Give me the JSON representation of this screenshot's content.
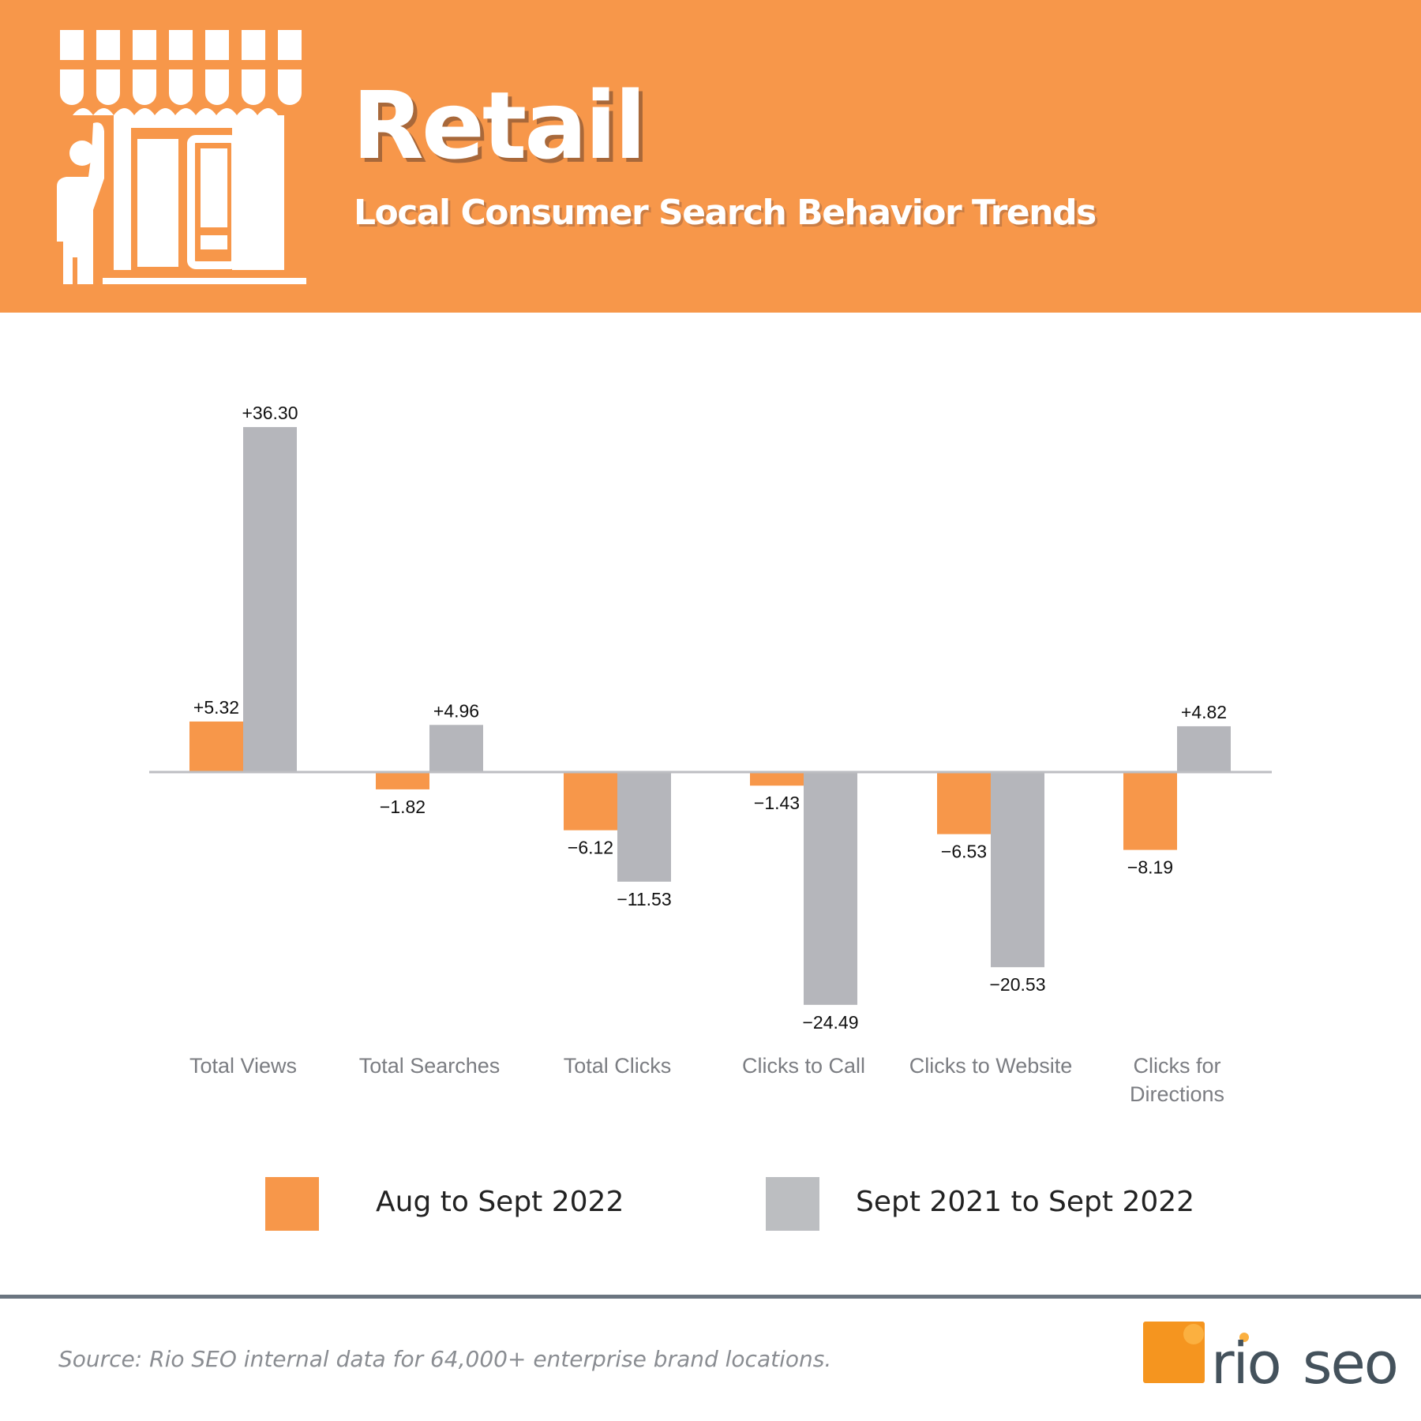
{
  "header": {
    "title": "Retail",
    "subtitle": "Local Consumer Search Behavior Trends",
    "icon": "storefront-icon",
    "background_color": "#f7974a"
  },
  "chart_data": {
    "type": "bar",
    "categories": [
      "Total Views",
      "Total Searches",
      "Total Clicks",
      "Clicks to Call",
      "Clicks to Website",
      "Clicks for Directions"
    ],
    "series": [
      {
        "name": "Aug to Sept 2022",
        "color": "#f7974a",
        "values": [
          5.32,
          -1.82,
          -6.12,
          -1.43,
          -6.53,
          -8.19
        ],
        "labels": [
          "+5.32",
          "−1.82",
          "−6.12",
          "−1.43",
          "−6.53",
          "−8.19"
        ]
      },
      {
        "name": "Sept 2021 to Sept 2022",
        "color": "#b5b6bb",
        "values": [
          36.3,
          4.96,
          -11.53,
          -24.49,
          -20.53,
          4.82
        ],
        "labels": [
          "+36.30",
          "+4.96",
          "−11.53",
          "−24.49",
          "−20.53",
          "+4.82"
        ]
      }
    ],
    "ylim": [
      -24.49,
      36.3
    ],
    "grid": false,
    "legend_position": "bottom"
  },
  "legend": {
    "items": [
      {
        "label": "Aug to Sept 2022",
        "color": "#f7974a"
      },
      {
        "label": "Sept 2021 to Sept 2022",
        "color": "#bcbec1"
      }
    ]
  },
  "footer": {
    "source": "Source: Rio SEO internal data for 64,000+ enterprise brand locations.",
    "logo_text": "rio seo"
  }
}
